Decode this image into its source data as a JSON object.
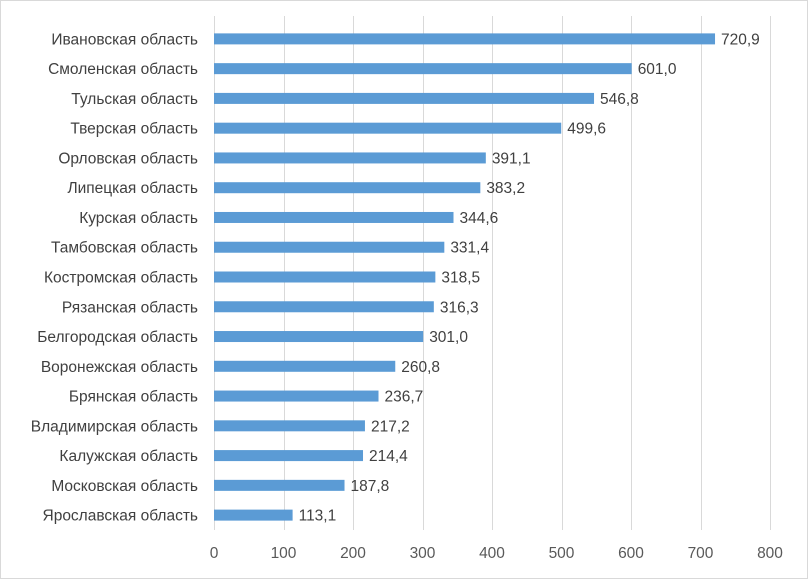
{
  "chart_data": {
    "type": "bar",
    "orientation": "horizontal",
    "categories": [
      "Ивановская область",
      "Смоленская область",
      "Тульская область",
      "Тверская область",
      "Орловская область",
      "Липецкая область",
      "Курская область",
      "Тамбовская область",
      "Костромская область",
      "Рязанская область",
      "Белгородская область",
      "Воронежская область",
      "Брянская область",
      "Владимирская область",
      "Калужская область",
      "Московская область",
      "Ярославская область"
    ],
    "values": [
      720.9,
      601.0,
      546.8,
      499.6,
      391.1,
      383.2,
      344.6,
      331.4,
      318.5,
      316.3,
      301.0,
      260.8,
      236.7,
      217.2,
      214.4,
      187.8,
      113.1
    ],
    "value_labels": [
      "720,9",
      "601,0",
      "546,8",
      "499,6",
      "391,1",
      "383,2",
      "344,6",
      "331,4",
      "318,5",
      "316,3",
      "301,0",
      "260,8",
      "236,7",
      "217,2",
      "214,4",
      "187,8",
      "113,1"
    ],
    "xlim": [
      0,
      800
    ],
    "x_ticks": [
      0,
      100,
      200,
      300,
      400,
      500,
      600,
      700,
      800
    ],
    "x_tick_labels": [
      "0",
      "100",
      "200",
      "300",
      "400",
      "500",
      "600",
      "700",
      "800"
    ],
    "title": "",
    "xlabel": "",
    "ylabel": "",
    "grid": "vertical",
    "legend": "none",
    "bar_color": "#5b9bd5",
    "grid_color": "#d9d9d9"
  }
}
